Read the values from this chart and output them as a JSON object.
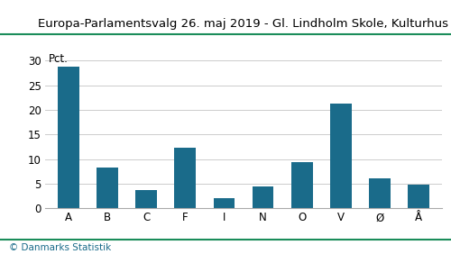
{
  "title": "Europa-Parlamentsvalg 26. maj 2019 - Gl. Lindholm Skole, Kulturhus",
  "categories": [
    "A",
    "B",
    "C",
    "F",
    "I",
    "N",
    "O",
    "V",
    "Ø",
    "Å"
  ],
  "values": [
    28.7,
    8.2,
    3.7,
    12.3,
    2.1,
    4.4,
    9.3,
    21.2,
    6.1,
    4.8
  ],
  "bar_color": "#1a6b8a",
  "pct_label": "Pct.",
  "ylim": [
    0,
    32
  ],
  "yticks": [
    0,
    5,
    10,
    15,
    20,
    25,
    30
  ],
  "footer": "© Danmarks Statistik",
  "background_color": "#ffffff",
  "title_fontsize": 9.5,
  "tick_fontsize": 8.5,
  "bar_width": 0.55,
  "separator_color": "#1a8c5a",
  "footer_color": "#1a6b8a",
  "grid_color": "#cccccc"
}
